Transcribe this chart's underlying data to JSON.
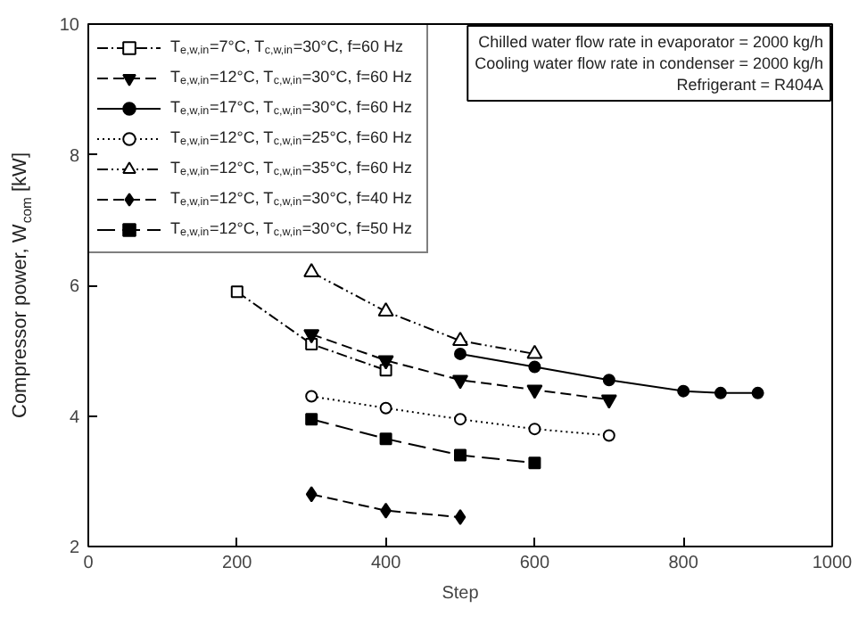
{
  "chart_data": {
    "type": "line",
    "xlabel": "Step",
    "ylabel": "Compressor power, W$_{com}$ [kW]",
    "xlim": [
      0,
      1000
    ],
    "xticks": [
      0,
      200,
      400,
      600,
      800,
      1000
    ],
    "ylim": [
      2,
      10
    ],
    "yticks": [
      2,
      4,
      6,
      8,
      10
    ],
    "grid": false,
    "legend": "top left",
    "annotations": [
      "Chilled water flow rate in evaporator = 2000 kg/h\nCooling water flow rate in condenser = 2000 kg/h\nRefrigerant = R404A"
    ],
    "series": [
      {
        "name": "T$_{e,w,in}$=7°C, T$_{c,w,in}$=30°C, f=60 Hz",
        "color": "#000000",
        "marker": "square_open",
        "line_style": "dashdot",
        "x": [
          200,
          300,
          400
        ],
        "values": [
          5.9,
          5.1,
          4.7
        ]
      },
      {
        "name": "T$_{e,w,in}$=12°C, T$_{c,w,in}$=30°C, f=60 Hz",
        "color": "#000000",
        "marker": "triangle_down",
        "line_style": "dashed",
        "x": [
          300,
          400,
          500,
          600,
          700
        ],
        "values": [
          5.25,
          4.85,
          4.55,
          4.4,
          4.25
        ]
      },
      {
        "name": "T$_{e,w,in}$=17°C, T$_{c,w,in}$=30°C, f=60 Hz",
        "color": "#000000",
        "marker": "circle",
        "line_style": "solid",
        "x": [
          500,
          600,
          700,
          800,
          850,
          900
        ],
        "values": [
          4.95,
          4.75,
          4.55,
          4.38,
          4.35,
          4.35
        ]
      },
      {
        "name": "T$_{e,w,in}$=12°C, T$_{c,w,in}$=25°C, f=60 Hz",
        "color": "#000000",
        "marker": "circle_open",
        "line_style": "dotted",
        "x": [
          300,
          400,
          500,
          600,
          700
        ],
        "values": [
          4.3,
          4.12,
          3.95,
          3.8,
          3.7
        ]
      },
      {
        "name": "T$_{e,w,in}$=12°C, T$_{c,w,in}$=35°C, f=60 Hz",
        "color": "#000000",
        "marker": "triangle_open",
        "line_style": "dashdotdot",
        "x": [
          300,
          400,
          500,
          600
        ],
        "values": [
          6.2,
          5.6,
          5.15,
          4.95
        ]
      },
      {
        "name": "T$_{e,w,in}$=12°C, T$_{c,w,in}$=30°C, f=40 Hz",
        "color": "#000000",
        "marker": "diamond",
        "line_style": "dashed",
        "x": [
          300,
          400,
          500
        ],
        "values": [
          2.8,
          2.55,
          2.45
        ]
      },
      {
        "name": "T$_{e,w,in}$=12°C, T$_{c,w,in}$=30°C, f=50 Hz",
        "color": "#000000",
        "marker": "square",
        "line_style": "longdash",
        "x": [
          300,
          400,
          500,
          600
        ],
        "values": [
          3.95,
          3.65,
          3.4,
          3.28
        ]
      }
    ]
  }
}
